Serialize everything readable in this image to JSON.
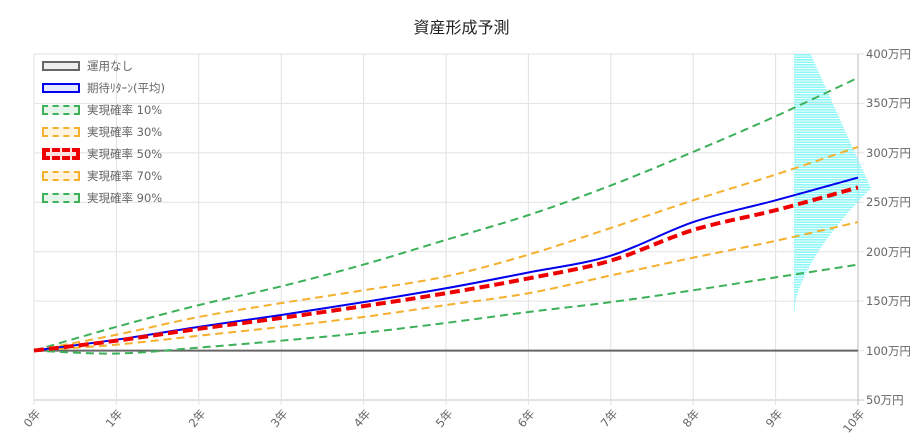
{
  "chart_data": {
    "type": "line",
    "title": "資産形成予測",
    "xlabel": "",
    "ylabel": "",
    "x": [
      "0年",
      "1年",
      "2年",
      "3年",
      "4年",
      "5年",
      "6年",
      "7年",
      "8年",
      "9年",
      "10年"
    ],
    "y_ticks": [
      "400万円",
      "350万円",
      "300万円",
      "250万円",
      "200万円",
      "150万円",
      "100万円",
      "50万円"
    ],
    "y_position": "right",
    "ylim": [
      50,
      400
    ],
    "grid": true,
    "legend_position": "top-left-inside",
    "series": [
      {
        "name": "運用なし",
        "color": "#666666",
        "style": "solid",
        "width": 2,
        "fill": "#eeeeee",
        "values": [
          100,
          100,
          100,
          100,
          100,
          100,
          100,
          100,
          100,
          100,
          100
        ]
      },
      {
        "name": "期待ﾘﾀｰﾝ(平均)",
        "color": "#0000ee",
        "style": "solid",
        "width": 2,
        "fill": "#e6e6ff",
        "values": [
          100,
          111,
          124,
          136,
          149,
          163,
          179,
          196,
          230,
          252,
          275
        ]
      },
      {
        "name": "実現確率 10%",
        "color": "#3cb15a",
        "style": "dashed",
        "width": 2,
        "fill": "#e6f4ea",
        "values": [
          100,
          97,
          103,
          110,
          118,
          128,
          139,
          149,
          161,
          174,
          187
        ]
      },
      {
        "name": "実現確率 30%",
        "color": "#f5b02e",
        "style": "dashed",
        "width": 2,
        "fill": "#fff4e0",
        "values": [
          100,
          106,
          115,
          124,
          134,
          146,
          158,
          176,
          194,
          211,
          230
        ]
      },
      {
        "name": "実現確率 50%",
        "color": "#ee0000",
        "style": "dashed",
        "width": 4,
        "fill": "#ffe0e0",
        "values": [
          100,
          110,
          122,
          133,
          145,
          158,
          173,
          191,
          222,
          242,
          265
        ]
      },
      {
        "name": "実現確率 70%",
        "color": "#f5b02e",
        "style": "dashed",
        "width": 2,
        "fill": "#fff4e0",
        "values": [
          100,
          116,
          134,
          148,
          161,
          175,
          197,
          224,
          252,
          278,
          306
        ]
      },
      {
        "name": "実現確率 90%",
        "color": "#3cb15a",
        "style": "dashed",
        "width": 2,
        "fill": "#e6f4ea",
        "values": [
          100,
          124,
          146,
          165,
          187,
          212,
          237,
          267,
          301,
          337,
          376
        ]
      }
    ],
    "distribution_histogram": {
      "color": "#8ff7f7",
      "description": "10年後の資産分布 (horizontal histogram near right edge)",
      "y_range": [
        140,
        400
      ],
      "peak_value": 265
    }
  },
  "colors": {
    "grid": "#e2e2e2",
    "axis_text": "#666666",
    "histogram": "#8ff7f7"
  }
}
